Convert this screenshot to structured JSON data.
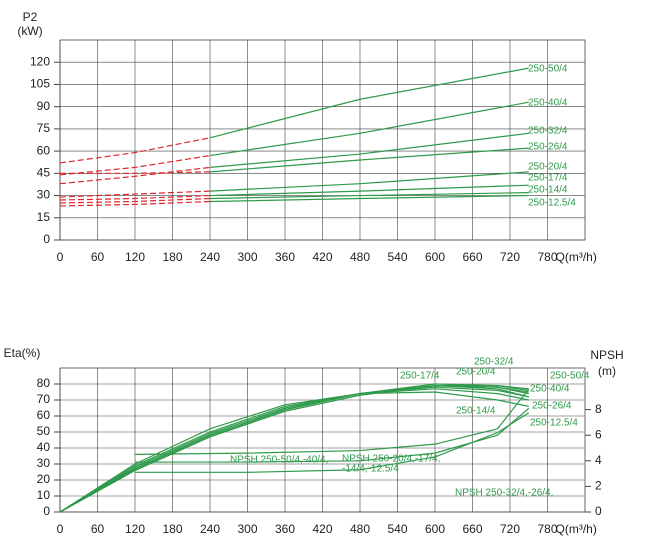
{
  "chart_data": [
    {
      "type": "line",
      "y_label_lines": [
        "P2",
        "(kW)"
      ],
      "x_label": "Q(m³/h)",
      "xlim": [
        0,
        840
      ],
      "ylim": [
        0,
        135
      ],
      "xticks": [
        0,
        60,
        120,
        180,
        240,
        300,
        360,
        420,
        480,
        540,
        600,
        660,
        720,
        780
      ],
      "yticks": [
        0,
        15,
        30,
        45,
        60,
        75,
        90,
        105,
        120
      ],
      "grid": true,
      "dashed_below": 240,
      "dash_color": "#e0262b",
      "x": [
        0,
        120,
        240,
        480,
        750
      ],
      "series": [
        {
          "name": "250-50/4",
          "color": "#2e9a4a",
          "values": [
            52,
            59,
            69,
            95,
            116
          ]
        },
        {
          "name": "250-40/4",
          "color": "#2e9a4a",
          "values": [
            44,
            49,
            57,
            72,
            93
          ]
        },
        {
          "name": "250-32/4",
          "color": "#2e9a4a",
          "values": [
            38,
            43,
            49,
            58,
            72
          ]
        },
        {
          "name": "250-26/4",
          "color": "#2e9a4a",
          "values": [
            45,
            45,
            46,
            54,
            62
          ]
        },
        {
          "name": "250-20/4",
          "color": "#2e9a4a",
          "values": [
            29,
            31,
            33,
            38,
            46
          ]
        },
        {
          "name": "250-17/4",
          "color": "#2e9a4a",
          "values": [
            27,
            28,
            30,
            33,
            37
          ]
        },
        {
          "name": "250-14/4",
          "color": "#2e9a4a",
          "values": [
            25,
            26,
            28,
            30,
            32
          ]
        },
        {
          "name": "250-12.5/4",
          "color": "#2e9a4a",
          "values": [
            23,
            24,
            26,
            28,
            30
          ]
        }
      ]
    },
    {
      "type": "line",
      "y_label_lines": [
        "Eta(%)"
      ],
      "y2_label_lines": [
        "NPSH",
        "(m)"
      ],
      "x_label": "Q(m³/h)",
      "xlim": [
        0,
        840
      ],
      "ylim": [
        0,
        90
      ],
      "y2lim": [
        0,
        11.25
      ],
      "xticks": [
        0,
        60,
        120,
        180,
        240,
        300,
        360,
        420,
        480,
        540,
        600,
        660,
        720,
        780
      ],
      "yticks": [
        0,
        10,
        20,
        30,
        40,
        50,
        60,
        70,
        80
      ],
      "y2ticks": [
        0,
        2,
        4,
        6,
        8
      ],
      "grid": true,
      "x": [
        0,
        120,
        240,
        360,
        480,
        600,
        700,
        750
      ],
      "series": [
        {
          "name": "250-50/4",
          "color": "#2e9a4a",
          "values": [
            0,
            26,
            47,
            63,
            73,
            79,
            79,
            77
          ]
        },
        {
          "name": "250-40/4",
          "color": "#2e9a4a",
          "values": [
            0,
            26,
            47,
            63,
            73,
            79,
            78,
            74
          ]
        },
        {
          "name": "250-32/4",
          "color": "#2e9a4a",
          "values": [
            0,
            27,
            48,
            64,
            74,
            80,
            79,
            76
          ]
        },
        {
          "name": "250-26/4",
          "color": "#2e9a4a",
          "values": [
            0,
            27,
            48,
            64,
            74,
            79,
            77,
            72
          ]
        },
        {
          "name": "250-20/4",
          "color": "#2e9a4a",
          "values": [
            0,
            27,
            48,
            64,
            74,
            79,
            78,
            75
          ]
        },
        {
          "name": "250-17/4",
          "color": "#2e9a4a",
          "values": [
            0,
            28,
            49,
            65,
            74,
            78,
            76,
            72
          ]
        },
        {
          "name": "250-14/4",
          "color": "#2e9a4a",
          "values": [
            0,
            29,
            50,
            66,
            74,
            77,
            74,
            70
          ]
        },
        {
          "name": "250-12.5/4",
          "color": "#2e9a4a",
          "values": [
            0,
            30,
            52,
            67,
            74,
            75,
            70,
            66
          ]
        },
        {
          "name": "NPSH 250-50/4,-40/4,",
          "axis": "y2",
          "color": "#2e9a4a",
          "x": [
            120,
            300,
            480,
            600,
            700,
            750
          ],
          "values": [
            4.5,
            4.6,
            4.8,
            5.3,
            6.5,
            9.6
          ]
        },
        {
          "name": "NPSH 250-20/4,-17/4,",
          "label_cont": "-14/4,-12.5/4",
          "axis": "y2",
          "color": "#2e9a4a",
          "x": [
            120,
            300,
            480,
            600,
            700,
            750
          ],
          "values": [
            3.9,
            3.9,
            4.0,
            4.6,
            6.0,
            8.1
          ]
        },
        {
          "name": "NPSH 250-32/4,-26/4,",
          "axis": "y2",
          "color": "#2e9a4a",
          "x": [
            120,
            300,
            480,
            600,
            700,
            750
          ],
          "values": [
            3.1,
            3.1,
            3.3,
            4.3,
            6.2,
            7.75
          ]
        }
      ]
    }
  ]
}
